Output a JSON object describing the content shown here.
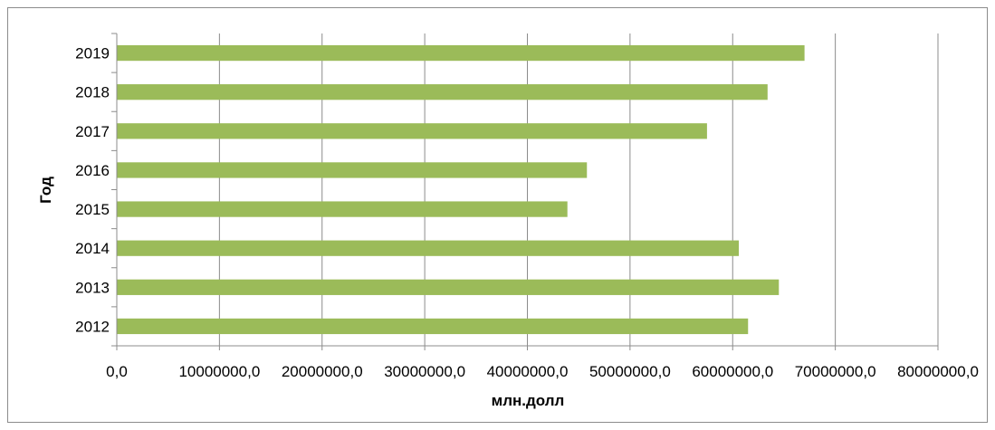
{
  "chart_data": {
    "type": "bar",
    "orientation": "horizontal",
    "categories": [
      "2012",
      "2013",
      "2014",
      "2015",
      "2016",
      "2017",
      "2018",
      "2019"
    ],
    "values": [
      61500000,
      64500000,
      60600000,
      43900000,
      45800000,
      57500000,
      63400000,
      67000000
    ],
    "xlabel": "млн.долл",
    "ylabel": "Год",
    "xlim": [
      0,
      80000000
    ],
    "x_ticks": [
      "0,0",
      "10000000,0",
      "20000000,0",
      "30000000,0",
      "40000000,0",
      "50000000,0",
      "60000000,0",
      "70000000,0",
      "80000000,0"
    ],
    "grid": "vertical",
    "legend": "none",
    "bar_color": "#9BBB59"
  }
}
